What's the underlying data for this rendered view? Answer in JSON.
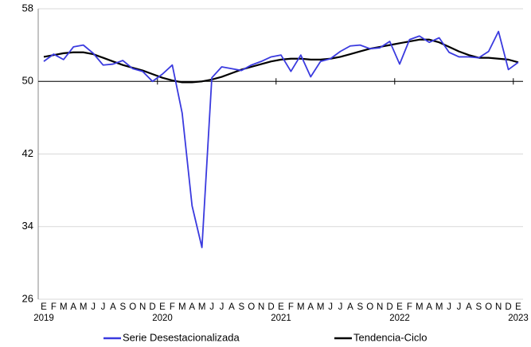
{
  "chart_data": {
    "type": "line",
    "categories": [
      "E",
      "F",
      "M",
      "A",
      "M",
      "J",
      "J",
      "A",
      "S",
      "O",
      "N",
      "D",
      "E",
      "F",
      "M",
      "A",
      "M",
      "J",
      "J",
      "A",
      "S",
      "O",
      "N",
      "D",
      "E",
      "F",
      "M",
      "A",
      "M",
      "J",
      "J",
      "A",
      "S",
      "O",
      "N",
      "D",
      "E",
      "F",
      "M",
      "A",
      "M",
      "J",
      "J",
      "A",
      "S",
      "O",
      "N",
      "D",
      "E"
    ],
    "year_labels": [
      "2019",
      "2020",
      "2021",
      "2022",
      "2023"
    ],
    "series": [
      {
        "name": "Serie Desestacionalizada",
        "color": "#3a3adf",
        "values": [
          52.2,
          53.0,
          52.4,
          53.8,
          54.0,
          53.1,
          51.8,
          51.9,
          52.3,
          51.4,
          51.1,
          50.0,
          50.8,
          51.8,
          46.5,
          36.3,
          31.7,
          50.4,
          51.6,
          51.4,
          51.2,
          51.8,
          52.2,
          52.7,
          52.9,
          51.1,
          52.9,
          50.5,
          52.2,
          52.5,
          53.3,
          53.9,
          54.0,
          53.6,
          53.7,
          54.4,
          51.9,
          54.6,
          55.0,
          54.3,
          54.8,
          53.2,
          52.7,
          52.7,
          52.6,
          53.3,
          55.5,
          51.3,
          52.1
        ]
      },
      {
        "name": "Tendencia-Ciclo",
        "color": "#000000",
        "values": [
          52.7,
          52.9,
          53.1,
          53.2,
          53.2,
          53.0,
          52.6,
          52.2,
          51.8,
          51.5,
          51.2,
          50.8,
          50.4,
          50.1,
          49.9,
          49.9,
          50.0,
          50.2,
          50.5,
          50.9,
          51.3,
          51.6,
          51.9,
          52.2,
          52.4,
          52.5,
          52.5,
          52.4,
          52.4,
          52.5,
          52.7,
          53.0,
          53.3,
          53.6,
          53.8,
          54.0,
          54.2,
          54.4,
          54.6,
          54.6,
          54.3,
          53.8,
          53.3,
          52.9,
          52.6,
          52.6,
          52.5,
          52.4,
          52.1
        ]
      }
    ],
    "ylim": [
      26,
      58
    ],
    "yticks": [
      26,
      34,
      42,
      50,
      58
    ],
    "grid": true,
    "legend": "bottom"
  }
}
